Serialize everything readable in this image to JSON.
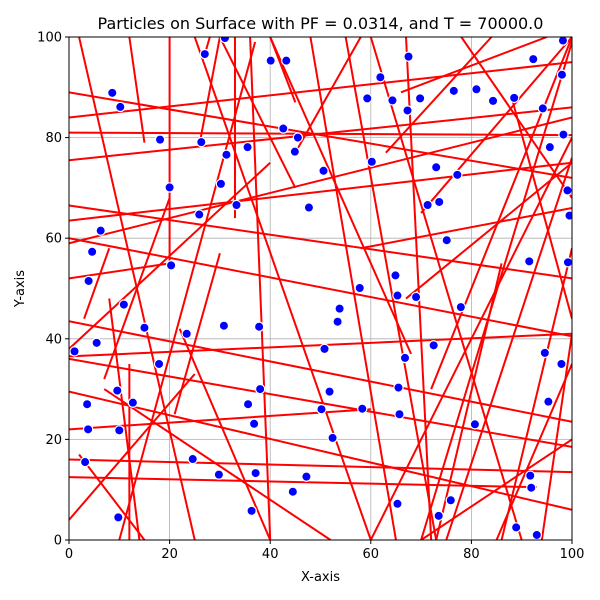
{
  "chart_data": {
    "type": "scatter",
    "title": "Particles on Surface with PF = 0.0314, and T = 70000.0",
    "xlabel": "X-axis",
    "ylabel": "Y-axis",
    "xlim": [
      0,
      100
    ],
    "ylim": [
      0,
      100
    ],
    "xticks": [
      0,
      20,
      40,
      60,
      80,
      100
    ],
    "yticks": [
      0,
      20,
      40,
      60,
      80,
      100
    ],
    "xtick_labels": [
      "0",
      "20",
      "40",
      "60",
      "80",
      "100"
    ],
    "ytick_labels": [
      "0",
      "20",
      "40",
      "60",
      "80",
      "100"
    ],
    "grid": true,
    "colors": {
      "particles": "#0000ff",
      "particle_edge": "#ffffff",
      "bonds": "#ff0000",
      "grid": "#b0b0b0"
    },
    "particles": [
      [
        1.1,
        37.5
      ],
      [
        3.2,
        15.5
      ],
      [
        3.6,
        27.0
      ],
      [
        3.8,
        22.0
      ],
      [
        3.9,
        51.5
      ],
      [
        4.6,
        57.3
      ],
      [
        5.5,
        39.2
      ],
      [
        6.3,
        61.5
      ],
      [
        8.6,
        88.9
      ],
      [
        9.6,
        29.7
      ],
      [
        9.8,
        4.5
      ],
      [
        10.0,
        21.8
      ],
      [
        10.2,
        86.1
      ],
      [
        10.9,
        46.8
      ],
      [
        12.7,
        27.3
      ],
      [
        15.0,
        42.2
      ],
      [
        17.9,
        35.0
      ],
      [
        18.1,
        79.6
      ],
      [
        20.0,
        70.1
      ],
      [
        20.3,
        54.6
      ],
      [
        23.4,
        41.0
      ],
      [
        24.6,
        16.1
      ],
      [
        25.9,
        64.7
      ],
      [
        26.3,
        79.1
      ],
      [
        27.0,
        96.6
      ],
      [
        29.8,
        13.0
      ],
      [
        30.2,
        70.8
      ],
      [
        30.8,
        42.6
      ],
      [
        31.0,
        99.8
      ],
      [
        31.3,
        76.6
      ],
      [
        33.3,
        66.6
      ],
      [
        35.5,
        78.1
      ],
      [
        35.6,
        27.0
      ],
      [
        36.3,
        5.8
      ],
      [
        36.8,
        23.1
      ],
      [
        37.1,
        13.3
      ],
      [
        37.8,
        42.4
      ],
      [
        38.0,
        30.0
      ],
      [
        40.1,
        95.3
      ],
      [
        42.6,
        81.8
      ],
      [
        43.2,
        95.3
      ],
      [
        44.5,
        9.6
      ],
      [
        44.9,
        77.2
      ],
      [
        45.5,
        80.0
      ],
      [
        47.2,
        12.6
      ],
      [
        47.7,
        66.1
      ],
      [
        50.2,
        26.0
      ],
      [
        50.6,
        73.4
      ],
      [
        50.8,
        38.0
      ],
      [
        51.8,
        29.5
      ],
      [
        52.4,
        20.3
      ],
      [
        53.4,
        43.4
      ],
      [
        53.8,
        46.0
      ],
      [
        57.8,
        50.1
      ],
      [
        58.3,
        26.1
      ],
      [
        59.3,
        87.8
      ],
      [
        60.2,
        75.2
      ],
      [
        61.9,
        92.0
      ],
      [
        64.3,
        87.4
      ],
      [
        64.9,
        52.6
      ],
      [
        65.3,
        7.2
      ],
      [
        65.3,
        48.6
      ],
      [
        65.5,
        30.3
      ],
      [
        65.7,
        25.0
      ],
      [
        66.8,
        36.2
      ],
      [
        67.3,
        85.4
      ],
      [
        67.5,
        96.1
      ],
      [
        69.0,
        48.3
      ],
      [
        69.8,
        87.8
      ],
      [
        71.3,
        66.6
      ],
      [
        72.5,
        38.7
      ],
      [
        73.0,
        74.1
      ],
      [
        73.5,
        4.8
      ],
      [
        73.6,
        67.2
      ],
      [
        75.1,
        59.6
      ],
      [
        75.9,
        7.9
      ],
      [
        76.5,
        89.3
      ],
      [
        77.2,
        72.6
      ],
      [
        77.9,
        46.3
      ],
      [
        80.7,
        23.0
      ],
      [
        81.0,
        89.6
      ],
      [
        84.3,
        87.3
      ],
      [
        88.5,
        87.9
      ],
      [
        88.9,
        2.5
      ],
      [
        91.5,
        55.4
      ],
      [
        91.7,
        12.8
      ],
      [
        91.9,
        10.4
      ],
      [
        92.3,
        95.6
      ],
      [
        93.0,
        1.0
      ],
      [
        94.2,
        85.8
      ],
      [
        94.6,
        37.2
      ],
      [
        95.3,
        27.5
      ],
      [
        95.6,
        78.1
      ],
      [
        97.9,
        35.0
      ],
      [
        98.0,
        92.5
      ],
      [
        98.2,
        99.3
      ],
      [
        98.3,
        80.6
      ],
      [
        99.1,
        69.5
      ],
      [
        99.2,
        55.2
      ],
      [
        99.5,
        64.5
      ]
    ],
    "bonds": [
      [
        0,
        66.5,
        100,
        52
      ],
      [
        0,
        59,
        100,
        84
      ],
      [
        0,
        89,
        100,
        72
      ],
      [
        0,
        84,
        100,
        95
      ],
      [
        0,
        81,
        100,
        80.5
      ],
      [
        0,
        75.5,
        100,
        86
      ],
      [
        0,
        63.5,
        100,
        75
      ],
      [
        0,
        60,
        100,
        40.5
      ],
      [
        0,
        52,
        20,
        55
      ],
      [
        0,
        43.5,
        100,
        23.5
      ],
      [
        0,
        36,
        100,
        18.5
      ],
      [
        0,
        36.5,
        100,
        41
      ],
      [
        0,
        29.5,
        100,
        6
      ],
      [
        0,
        22,
        60,
        26
      ],
      [
        0,
        12.5,
        93,
        10.5
      ],
      [
        0,
        16,
        100,
        13.5
      ],
      [
        0,
        38,
        40,
        75
      ],
      [
        0,
        4,
        25,
        33
      ],
      [
        12,
        0,
        12,
        35
      ],
      [
        2,
        17,
        15,
        0
      ],
      [
        7,
        30,
        52,
        0
      ],
      [
        22,
        42,
        40,
        0
      ],
      [
        21,
        25,
        30,
        57
      ],
      [
        14,
        0,
        8,
        48
      ],
      [
        7,
        32,
        20,
        68
      ],
      [
        3,
        44,
        8,
        58
      ],
      [
        2,
        100,
        25,
        0
      ],
      [
        12,
        100,
        15,
        79
      ],
      [
        20,
        100,
        20,
        55
      ],
      [
        30,
        100,
        26,
        79
      ],
      [
        27,
        96.6,
        28,
        100
      ],
      [
        33,
        100,
        33,
        64
      ],
      [
        37,
        99,
        10,
        0
      ],
      [
        36,
        100,
        40,
        0
      ],
      [
        45,
        87,
        40,
        100
      ],
      [
        45,
        70,
        30,
        100
      ],
      [
        45,
        77,
        58,
        100
      ],
      [
        25,
        100,
        60,
        0
      ],
      [
        40,
        100,
        68,
        37
      ],
      [
        48,
        100,
        65,
        0
      ],
      [
        55,
        100,
        73,
        0
      ],
      [
        60,
        100,
        90,
        0
      ],
      [
        67,
        100,
        72,
        0
      ],
      [
        70,
        65,
        100,
        100
      ],
      [
        66,
        89,
        95,
        100
      ],
      [
        63,
        77,
        84,
        100
      ],
      [
        72,
        30,
        100,
        100
      ],
      [
        73,
        0,
        86,
        55
      ],
      [
        78,
        100,
        100,
        68
      ],
      [
        100,
        20,
        70,
        0
      ],
      [
        100,
        80,
        60,
        0
      ],
      [
        100,
        76,
        75,
        0
      ],
      [
        100,
        58,
        86,
        0
      ],
      [
        88,
        88,
        100,
        44
      ],
      [
        100,
        99,
        70,
        0
      ],
      [
        100,
        41,
        94,
        0
      ],
      [
        100,
        35,
        85,
        0
      ],
      [
        67,
        48,
        100,
        75
      ],
      [
        58,
        58,
        100,
        66
      ]
    ]
  }
}
